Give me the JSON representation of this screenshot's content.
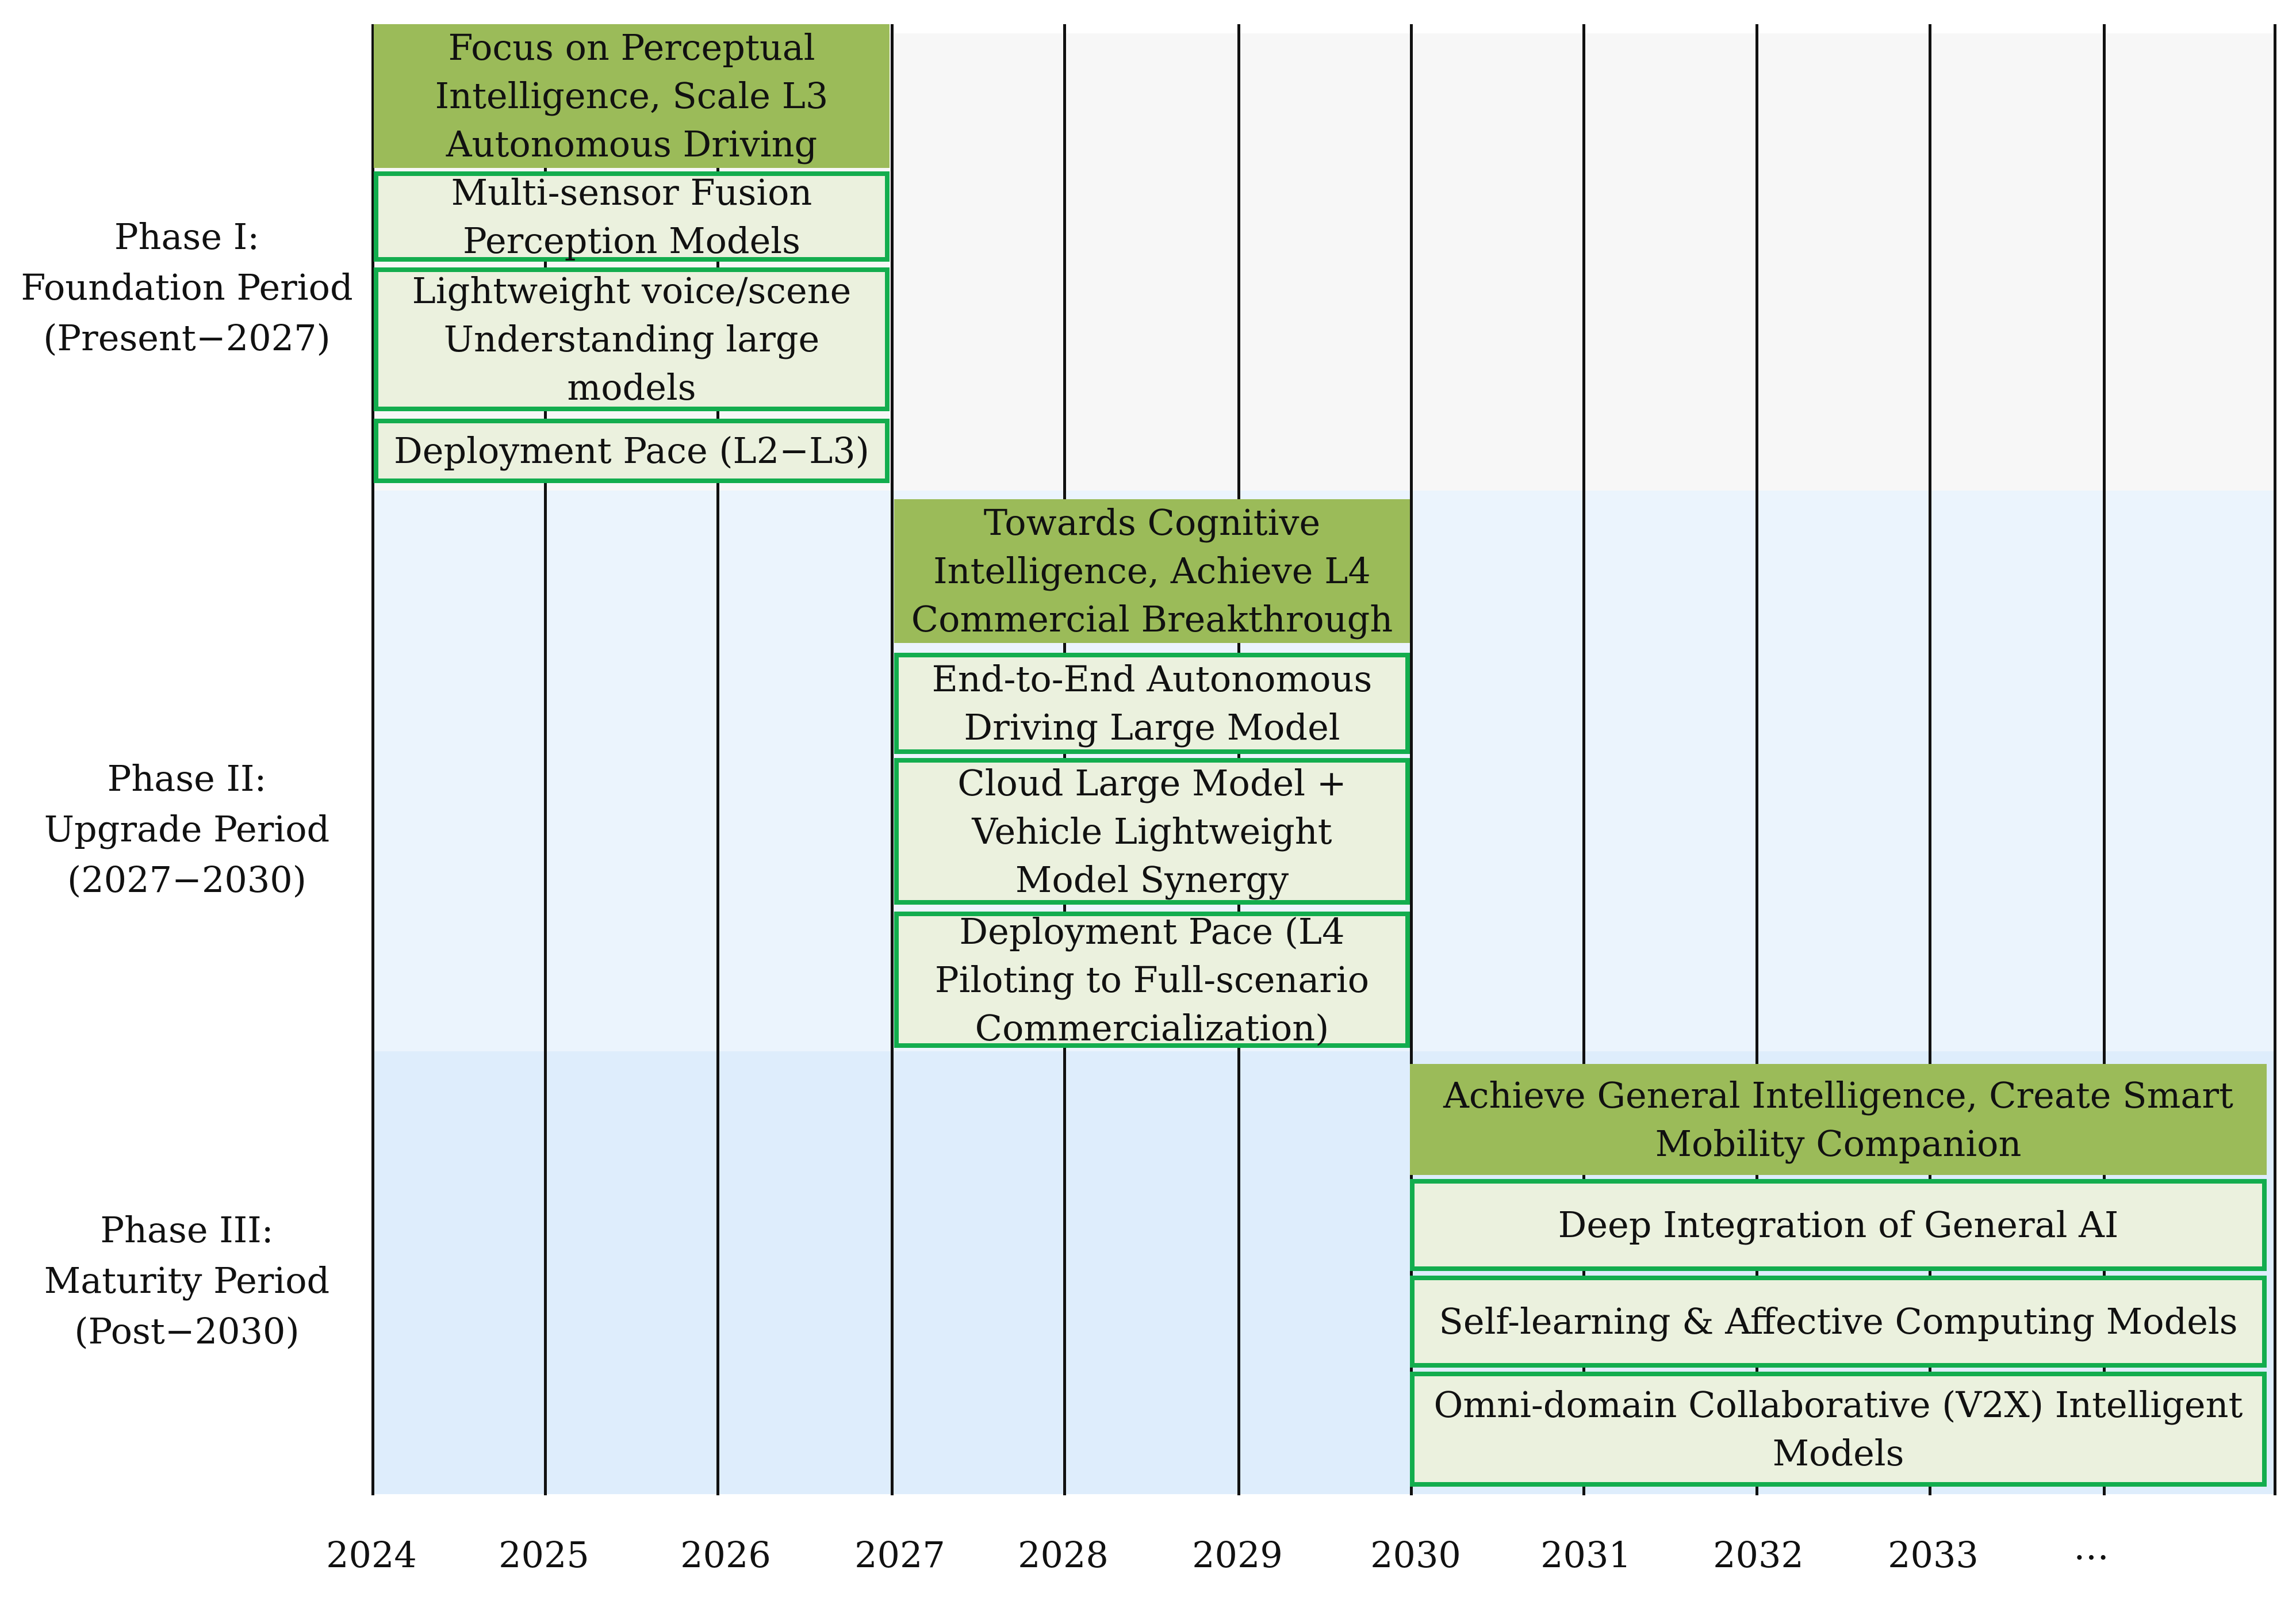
{
  "phases": [
    {
      "label_line1": "Phase I:",
      "label_line2": "Foundation Period",
      "label_line3": "(Present−2027)",
      "header": [
        "Focus on Perceptual",
        "Intelligence, Scale L3",
        "Autonomous Driving"
      ],
      "items": [
        [
          "Multi-sensor Fusion",
          "Perception Models"
        ],
        [
          "Lightweight voice/scene",
          "Understanding large",
          "models"
        ],
        [
          "Deployment Pace (L2−L3)"
        ]
      ]
    },
    {
      "label_line1": "Phase II:",
      "label_line2": "Upgrade Period",
      "label_line3": "(2027−2030)",
      "header": [
        "Towards Cognitive",
        "Intelligence, Achieve L4",
        "Commercial Breakthrough"
      ],
      "items": [
        [
          "End-to-End Autonomous",
          "Driving Large Model"
        ],
        [
          "Cloud Large Model +",
          "Vehicle Lightweight",
          "Model Synergy"
        ],
        [
          "Deployment Pace (L4",
          "Piloting to Full-scenario",
          "Commercialization)"
        ]
      ]
    },
    {
      "label_line1": "Phase III:",
      "label_line2": "Maturity Period",
      "label_line3": "(Post−2030)",
      "header": [
        "Achieve General Intelligence, Create Smart",
        "Mobility Companion"
      ],
      "items": [
        [
          "Deep Integration of General AI"
        ],
        [
          "Self-learning & Affective Computing Models"
        ],
        [
          "Omni-domain Collaborative (V2X) Intelligent",
          "Models"
        ]
      ]
    }
  ],
  "timeline": {
    "years": [
      "2024",
      "2025",
      "2026",
      "2027",
      "2028",
      "2029",
      "2030",
      "2031",
      "2032",
      "2033",
      "…"
    ]
  },
  "colors": {
    "header_fill": "#9bbb59",
    "item_fill": "#ebf1de",
    "item_border": "#13ad4e",
    "band_phase1": "#f7f7f7",
    "band_phase2": "#ebf4fd",
    "band_phase3": "#deedfc"
  }
}
